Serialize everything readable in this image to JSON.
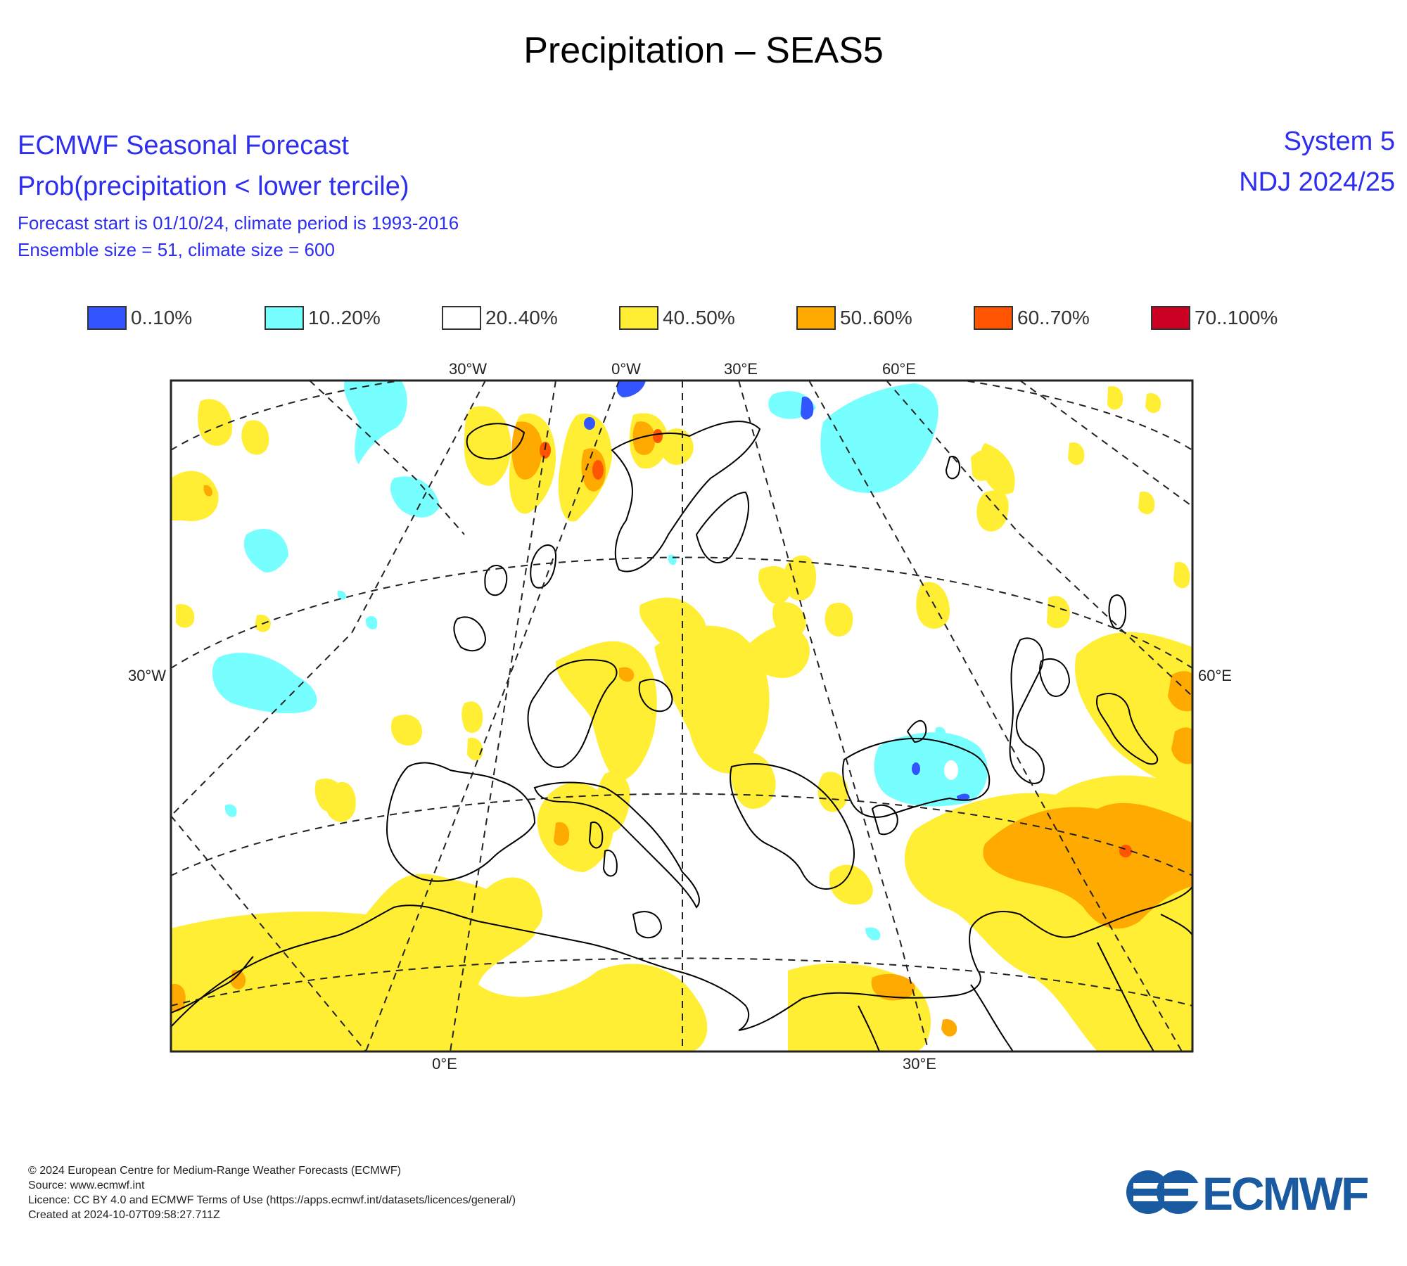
{
  "title": "Precipitation – SEAS5",
  "header": {
    "line1": "ECMWF Seasonal Forecast",
    "line2": "Prob(precipitation < lower tercile)",
    "line3": "Forecast start is 01/10/24, climate period is 1993-2016",
    "line4": "Ensemble size = 51, climate size = 600",
    "system": "System 5",
    "period": "NDJ 2024/25"
  },
  "legend": [
    {
      "label": "0..10%",
      "color": "#3355ff"
    },
    {
      "label": "10..20%",
      "color": "#77ffff"
    },
    {
      "label": "20..40%",
      "color": "#ffffff"
    },
    {
      "label": "40..50%",
      "color": "#ffee33"
    },
    {
      "label": "50..60%",
      "color": "#ffaa00"
    },
    {
      "label": "60..70%",
      "color": "#ff5500"
    },
    {
      "label": "70..100%",
      "color": "#cc0022"
    }
  ],
  "map": {
    "projection": "polar stereographic (Europe)",
    "graticule": "dashed",
    "top_labels": [
      "30°W",
      "0°W",
      "30°E",
      "60°E"
    ],
    "left_label": "30°W",
    "right_label": "60°E",
    "bottom_labels": [
      "0°E",
      "30°E"
    ]
  },
  "footer": {
    "line1": "© 2024 European Centre for Medium-Range Weather Forecasts (ECMWF)",
    "line2": "Source: www.ecmwf.int",
    "line3": "Licence: CC BY 4.0 and ECMWF Terms of Use (https://apps.ecmwf.int/datasets/licences/general/)",
    "line4": "Created at 2024-10-07T09:58:27.711Z"
  },
  "logo": {
    "text": "ECMWF",
    "color": "#1a5aa0"
  }
}
